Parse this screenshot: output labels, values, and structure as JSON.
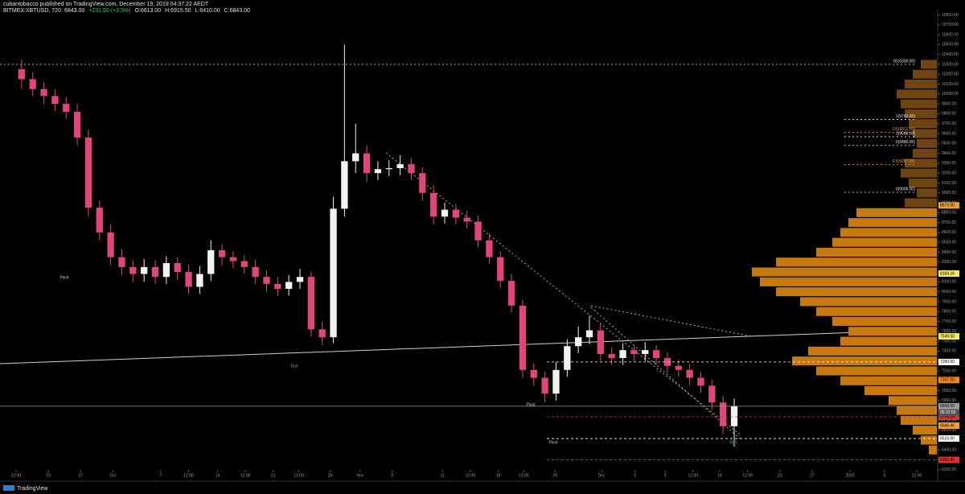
{
  "chart_data": {
    "type": "candlestick",
    "title": "cubantobacco published on TradingView.com, December 19, 2019 04:37:22 AEDT",
    "subtitle": "BITMEX:XBTUSD, 720",
    "quote": [
      "6843.00",
      "+231.50 (+3.5%)",
      "O:6613.00",
      "H:6915.50",
      "L:6410.00",
      "C:6843.00"
    ],
    "brand": "TradingView",
    "countdown": "06:22:59",
    "colors": {
      "up": "#f2f2f2",
      "down": "#e0457b"
    },
    "open": [
      10250,
      10150,
      10050,
      9980,
      9900,
      9820,
      9560,
      8850,
      8600,
      8350,
      8250,
      8180,
      8250,
      8150,
      8290,
      8200,
      8050,
      8180,
      8420,
      8350,
      8310,
      8250,
      8150,
      8080,
      8030,
      8100,
      8150,
      7620,
      7540,
      8840,
      9320,
      9400,
      9200,
      9240,
      9250,
      9290,
      9200,
      9000,
      8760,
      8830,
      8750,
      8710,
      8520,
      8350,
      8110,
      7860,
      7210,
      7130,
      6970,
      7210,
      7450,
      7540,
      7610,
      7370,
      7330,
      7410,
      7370,
      7410,
      7330,
      7250,
      7210,
      7130,
      7050,
      6880,
      6640
    ],
    "high": [
      10350,
      10220,
      10120,
      10050,
      9970,
      9900,
      9640,
      8920,
      8680,
      8430,
      8320,
      8330,
      8320,
      8360,
      8350,
      8270,
      8260,
      8520,
      8480,
      8410,
      8370,
      8320,
      8220,
      8150,
      8170,
      8230,
      8200,
      7700,
      8960,
      10500,
      9700,
      9480,
      9320,
      9330,
      9380,
      9350,
      9260,
      9080,
      8900,
      8890,
      8820,
      8770,
      8590,
      8410,
      8180,
      7920,
      7280,
      7190,
      7290,
      7520,
      7650,
      7760,
      7680,
      7440,
      7480,
      7460,
      7490,
      7460,
      7390,
      7310,
      7270,
      7190,
      7110,
      6950,
      6920
    ],
    "low": [
      10050,
      9980,
      9900,
      9830,
      9750,
      9480,
      8760,
      8520,
      8270,
      8170,
      8100,
      8100,
      8080,
      8080,
      8120,
      7980,
      7980,
      8110,
      8270,
      8240,
      8180,
      8080,
      8000,
      7960,
      7960,
      8030,
      7550,
      7460,
      7480,
      8760,
      9200,
      9110,
      9130,
      9170,
      9180,
      9130,
      8920,
      8680,
      8690,
      8680,
      8640,
      8450,
      8280,
      8040,
      7790,
      7130,
      7050,
      6880,
      6900,
      7140,
      7380,
      7470,
      7300,
      7260,
      7260,
      7300,
      7300,
      7260,
      7180,
      7140,
      7060,
      6980,
      6810,
      6560,
      6435
    ],
    "close": [
      10150,
      10050,
      9980,
      9900,
      9820,
      9560,
      8850,
      8600,
      8350,
      8250,
      8180,
      8250,
      8150,
      8290,
      8200,
      8050,
      8180,
      8420,
      8350,
      8310,
      8250,
      8150,
      8080,
      8030,
      8100,
      8150,
      7620,
      7540,
      8840,
      9320,
      9400,
      9200,
      9240,
      9250,
      9290,
      9200,
      9000,
      8760,
      8830,
      8750,
      8710,
      8520,
      8350,
      8110,
      7860,
      7210,
      7130,
      6970,
      7210,
      7450,
      7540,
      7610,
      7370,
      7330,
      7410,
      7370,
      7410,
      7330,
      7250,
      7210,
      7130,
      7050,
      6880,
      6640,
      6843
    ],
    "xlim": [
      -1.94,
      82.2
    ],
    "xticks": [
      {
        "value": -0.5,
        "label": "22:00"
      },
      {
        "value": 2.4,
        "label": "23"
      },
      {
        "value": 5.3,
        "label": "27"
      },
      {
        "value": 8.2,
        "label": "Oct"
      },
      {
        "value": 12.5,
        "label": "7"
      },
      {
        "value": 15.0,
        "label": "12:00"
      },
      {
        "value": 17.6,
        "label": "14"
      },
      {
        "value": 20.1,
        "label": "12:00"
      },
      {
        "value": 22.6,
        "label": "21"
      },
      {
        "value": 24.9,
        "label": "12:00"
      },
      {
        "value": 27.7,
        "label": "28"
      },
      {
        "value": 30.4,
        "label": "Nov"
      },
      {
        "value": 33.3,
        "label": "5"
      },
      {
        "value": 37.8,
        "label": "11"
      },
      {
        "value": 40.3,
        "label": "12:00"
      },
      {
        "value": 42.8,
        "label": "18"
      },
      {
        "value": 45.1,
        "label": "12:00"
      },
      {
        "value": 47.9,
        "label": "25"
      },
      {
        "value": 52.1,
        "label": "Dec"
      },
      {
        "value": 55.1,
        "label": "5"
      },
      {
        "value": 57.8,
        "label": "9"
      },
      {
        "value": 60.3,
        "label": "12:00"
      },
      {
        "value": 62.7,
        "label": "16"
      },
      {
        "value": 65.2,
        "label": "12:00"
      },
      {
        "value": 68.1,
        "label": "23"
      },
      {
        "value": 71.0,
        "label": "27"
      },
      {
        "value": 74.4,
        "label": "2020"
      },
      {
        "value": 77.5,
        "label": "6"
      },
      {
        "value": 80.4,
        "label": "12:00"
      }
    ],
    "ylim": [
      6199,
      10853
    ],
    "yticks": [
      {
        "value": 6200,
        "label": "6200.00"
      },
      {
        "value": 6300,
        "label": "6300.00"
      },
      {
        "value": 6400,
        "label": "6400.00"
      },
      {
        "value": 6500,
        "label": "6500.00"
      },
      {
        "value": 6600,
        "label": "6600.00"
      },
      {
        "value": 6700,
        "label": "6700.00"
      },
      {
        "value": 6800,
        "label": "6800.00"
      },
      {
        "value": 6900,
        "label": "6900.00"
      },
      {
        "value": 7000,
        "label": "7000.00"
      },
      {
        "value": 7100,
        "label": "7100.00"
      },
      {
        "value": 7200,
        "label": "7200.00"
      },
      {
        "value": 7300,
        "label": "7300.00"
      },
      {
        "value": 7400,
        "label": "7400.00"
      },
      {
        "value": 7500,
        "label": "7500.00"
      },
      {
        "value": 7600,
        "label": "7600.00"
      },
      {
        "value": 7700,
        "label": "7700.00"
      },
      {
        "value": 7800,
        "label": "7800.00"
      },
      {
        "value": 7900,
        "label": "7900.00"
      },
      {
        "value": 8000,
        "label": "8000.00"
      },
      {
        "value": 8100,
        "label": "8100.00"
      },
      {
        "value": 8200,
        "label": "8200.00"
      },
      {
        "value": 8300,
        "label": "8300.00"
      },
      {
        "value": 8400,
        "label": "8400.00"
      },
      {
        "value": 8500,
        "label": "8500.00"
      },
      {
        "value": 8600,
        "label": "8600.00"
      },
      {
        "value": 8700,
        "label": "8700.00"
      },
      {
        "value": 8800,
        "label": "8800.00"
      },
      {
        "value": 8900,
        "label": "8900.00"
      },
      {
        "value": 9000,
        "label": "9000.00"
      },
      {
        "value": 9100,
        "label": "9100.00"
      },
      {
        "value": 9200,
        "label": "9200.00"
      },
      {
        "value": 9300,
        "label": "9300.00"
      },
      {
        "value": 9400,
        "label": "9400.00"
      },
      {
        "value": 9500,
        "label": "9500.00"
      },
      {
        "value": 9600,
        "label": "9600.00"
      },
      {
        "value": 9700,
        "label": "9700.00"
      },
      {
        "value": 9800,
        "label": "9800.00"
      },
      {
        "value": 9900,
        "label": "9900.00"
      },
      {
        "value": 10000,
        "label": "10000.00"
      },
      {
        "value": 10100,
        "label": "10100.00"
      },
      {
        "value": 10200,
        "label": "10200.00"
      },
      {
        "value": 10300,
        "label": "10300.00"
      },
      {
        "value": 10400,
        "label": "10400.00"
      },
      {
        "value": 10500,
        "label": "10500.00"
      },
      {
        "value": 10600,
        "label": "10600.00"
      },
      {
        "value": 10700,
        "label": "10700.00"
      },
      {
        "value": 10800,
        "label": "10800.00"
      }
    ],
    "price_labels": [
      {
        "value": 8873.5,
        "label": "8873.50",
        "color": "#f0a030",
        "line": "none"
      },
      {
        "value": 8184.16,
        "label": "8184.16",
        "color": "#f5e663",
        "line": "none"
      },
      {
        "value": 7549.5,
        "label": "7549.50",
        "color": "#f5e663",
        "line": "none"
      },
      {
        "value": 7290,
        "label": "7290.00",
        "color": "#ffffff",
        "line": "dashed"
      },
      {
        "value": 7107.5,
        "label": "7107.50",
        "color": "#f08a20",
        "line": "none"
      },
      {
        "value": 6843,
        "label": "6843.00",
        "color": "#9a9a9a",
        "line": "solid"
      },
      {
        "value": 6736,
        "label": "6736.00",
        "color": "#e03030",
        "line": "dashed"
      },
      {
        "value": 6646.46,
        "label": "6646.46",
        "color": "#f0a030",
        "line": "none"
      },
      {
        "value": 6516,
        "label": "6516.00",
        "color": "#ffffff",
        "line": "dashed"
      },
      {
        "value": 6300,
        "label": "6300.00",
        "color": "#e03030",
        "line": "dashed"
      }
    ],
    "levels": [
      {
        "value": 10300,
        "label": "0(10300.00)",
        "color": "#e8e8e8"
      },
      {
        "value": 9742,
        "label": "1(9742.00)",
        "color": "#e8e8e8"
      },
      {
        "value": 9611,
        "label": "0.5(9611.00)",
        "color": "#f0a030"
      },
      {
        "value": 9568,
        "label": "1(9568.00)",
        "color": "#e8e8e8"
      },
      {
        "value": 9480,
        "label": "0(9480.00)",
        "color": "#e8e8e8"
      },
      {
        "value": 9287,
        "label": "0.5(9287.00)",
        "color": "#f0a030"
      },
      {
        "value": 9006,
        "label": "0(9006.00)",
        "color": "#e8e8e8"
      }
    ],
    "volume_profile": {
      "color": "#c7780f",
      "color_outside": "#6e4410",
      "prices": [
        10300,
        10200,
        10100,
        10000,
        9900,
        9800,
        9700,
        9600,
        9500,
        9400,
        9300,
        9200,
        9100,
        9000,
        8900,
        8800,
        8700,
        8600,
        8500,
        8400,
        8300,
        8200,
        8100,
        8000,
        7900,
        7800,
        7700,
        7600,
        7500,
        7400,
        7300,
        7200,
        7100,
        7000,
        6900,
        6800,
        6700,
        6600,
        6500,
        6400
      ],
      "volumes": [
        20,
        30,
        40,
        50,
        45,
        40,
        35,
        30,
        25,
        30,
        40,
        45,
        35,
        25,
        40,
        100,
        110,
        120,
        130,
        150,
        200,
        230,
        220,
        200,
        170,
        150,
        130,
        110,
        120,
        160,
        180,
        150,
        120,
        90,
        60,
        50,
        45,
        30,
        20,
        10
      ]
    },
    "annotations": [
      {
        "text": "Pivot",
        "color": "#d0d0d0"
      },
      {
        "text": "Pivot",
        "color": "#d0d0d0"
      },
      {
        "text": "Pivot",
        "color": "#d0d0d0"
      },
      {
        "text": "Bull",
        "color": "#2fbf4f"
      },
      {
        "text": "Bull",
        "color": "#2fbf4f"
      }
    ]
  }
}
